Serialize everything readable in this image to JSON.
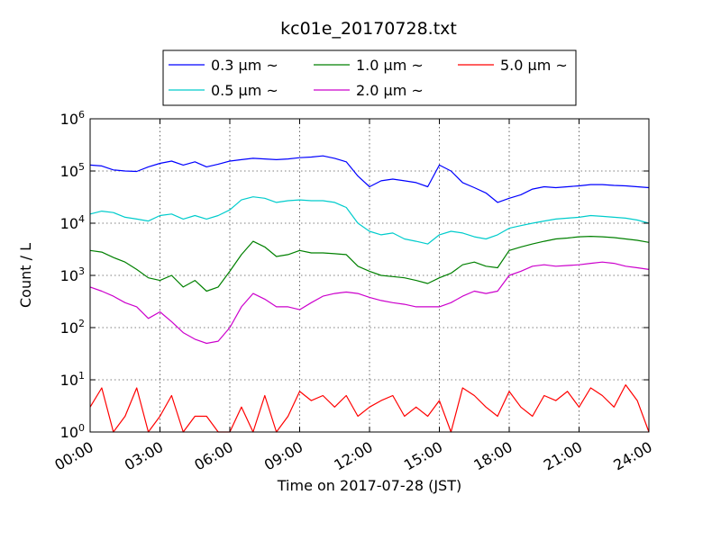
{
  "chart_data": {
    "type": "line",
    "title": "kc01e_20170728.txt",
    "xlabel": "Time on 2017-07-28 (JST)",
    "ylabel": "Count / L",
    "yscale": "log",
    "ylim": [
      1,
      1000000
    ],
    "xlim": [
      "00:00",
      "24:00"
    ],
    "x_ticks": [
      "00:00",
      "03:00",
      "06:00",
      "09:00",
      "12:00",
      "15:00",
      "18:00",
      "21:00",
      "24:00"
    ],
    "y_ticks": [
      {
        "base": "10",
        "exp": "0",
        "value": 1
      },
      {
        "base": "10",
        "exp": "1",
        "value": 10
      },
      {
        "base": "10",
        "exp": "2",
        "value": 100
      },
      {
        "base": "10",
        "exp": "3",
        "value": 1000
      },
      {
        "base": "10",
        "exp": "4",
        "value": 10000
      },
      {
        "base": "10",
        "exp": "5",
        "value": 100000
      },
      {
        "base": "10",
        "exp": "6",
        "value": 1000000
      }
    ],
    "grid": true,
    "legend_position": "top-center",
    "x": [
      "00:00",
      "00:30",
      "01:00",
      "01:30",
      "02:00",
      "02:30",
      "03:00",
      "03:30",
      "04:00",
      "04:30",
      "05:00",
      "05:30",
      "06:00",
      "06:30",
      "07:00",
      "07:30",
      "08:00",
      "08:30",
      "09:00",
      "09:30",
      "10:00",
      "10:30",
      "11:00",
      "11:30",
      "12:00",
      "12:30",
      "13:00",
      "13:30",
      "14:00",
      "14:30",
      "15:00",
      "15:30",
      "16:00",
      "16:30",
      "17:00",
      "17:30",
      "18:00",
      "18:30",
      "19:00",
      "19:30",
      "20:00",
      "20:30",
      "21:00",
      "21:30",
      "22:00",
      "22:30",
      "23:00",
      "23:30",
      "24:00"
    ],
    "series": [
      {
        "name": "0.3 μm ~",
        "color": "#0000ff",
        "values": [
          130000,
          125000,
          105000,
          100000,
          98000,
          120000,
          140000,
          155000,
          130000,
          150000,
          120000,
          135000,
          155000,
          165000,
          175000,
          170000,
          165000,
          170000,
          180000,
          185000,
          195000,
          175000,
          150000,
          80000,
          50000,
          65000,
          70000,
          65000,
          60000,
          50000,
          130000,
          100000,
          60000,
          48000,
          38000,
          25000,
          30000,
          35000,
          45000,
          50000,
          48000,
          50000,
          52000,
          55000,
          55000,
          53000,
          52000,
          50000,
          48000
        ]
      },
      {
        "name": "0.5 μm ~",
        "color": "#00cccc",
        "values": [
          15000,
          17000,
          16000,
          13000,
          12000,
          11000,
          14000,
          15000,
          12000,
          14000,
          12000,
          14000,
          18000,
          28000,
          32000,
          30000,
          25000,
          27000,
          28000,
          27000,
          27000,
          25000,
          20000,
          10000,
          7000,
          6000,
          6500,
          5000,
          4500,
          4000,
          6000,
          7000,
          6500,
          5500,
          5000,
          6000,
          8000,
          9000,
          10000,
          11000,
          12000,
          12500,
          13000,
          14000,
          13500,
          13000,
          12500,
          11500,
          10000
        ]
      },
      {
        "name": "1.0 μm ~",
        "color": "#008000",
        "values": [
          3000,
          2800,
          2200,
          1800,
          1300,
          900,
          800,
          1000,
          600,
          800,
          500,
          600,
          1200,
          2500,
          4500,
          3500,
          2300,
          2500,
          3000,
          2700,
          2700,
          2600,
          2500,
          1500,
          1200,
          1000,
          950,
          900,
          800,
          700,
          900,
          1100,
          1600,
          1800,
          1500,
          1400,
          3000,
          3500,
          4000,
          4500,
          5000,
          5200,
          5500,
          5600,
          5500,
          5300,
          5000,
          4700,
          4300
        ]
      },
      {
        "name": "2.0 μm ~",
        "color": "#cc00cc",
        "values": [
          600,
          500,
          400,
          300,
          250,
          150,
          200,
          130,
          80,
          60,
          50,
          55,
          100,
          250,
          450,
          350,
          250,
          250,
          220,
          300,
          400,
          450,
          480,
          450,
          380,
          330,
          300,
          280,
          250,
          250,
          250,
          300,
          400,
          500,
          450,
          500,
          1000,
          1200,
          1500,
          1600,
          1500,
          1550,
          1600,
          1700,
          1800,
          1700,
          1500,
          1400,
          1300
        ]
      },
      {
        "name": "5.0 μm ~",
        "color": "#ff0000",
        "values": [
          3,
          7,
          1,
          2,
          7,
          1,
          2,
          5,
          1,
          2,
          2,
          1,
          1,
          3,
          1,
          5,
          1,
          2,
          6,
          4,
          5,
          3,
          5,
          2,
          3,
          4,
          5,
          2,
          3,
          2,
          4,
          1,
          7,
          5,
          3,
          2,
          6,
          3,
          2,
          5,
          4,
          6,
          3,
          7,
          5,
          3,
          8,
          4,
          1
        ]
      }
    ]
  }
}
